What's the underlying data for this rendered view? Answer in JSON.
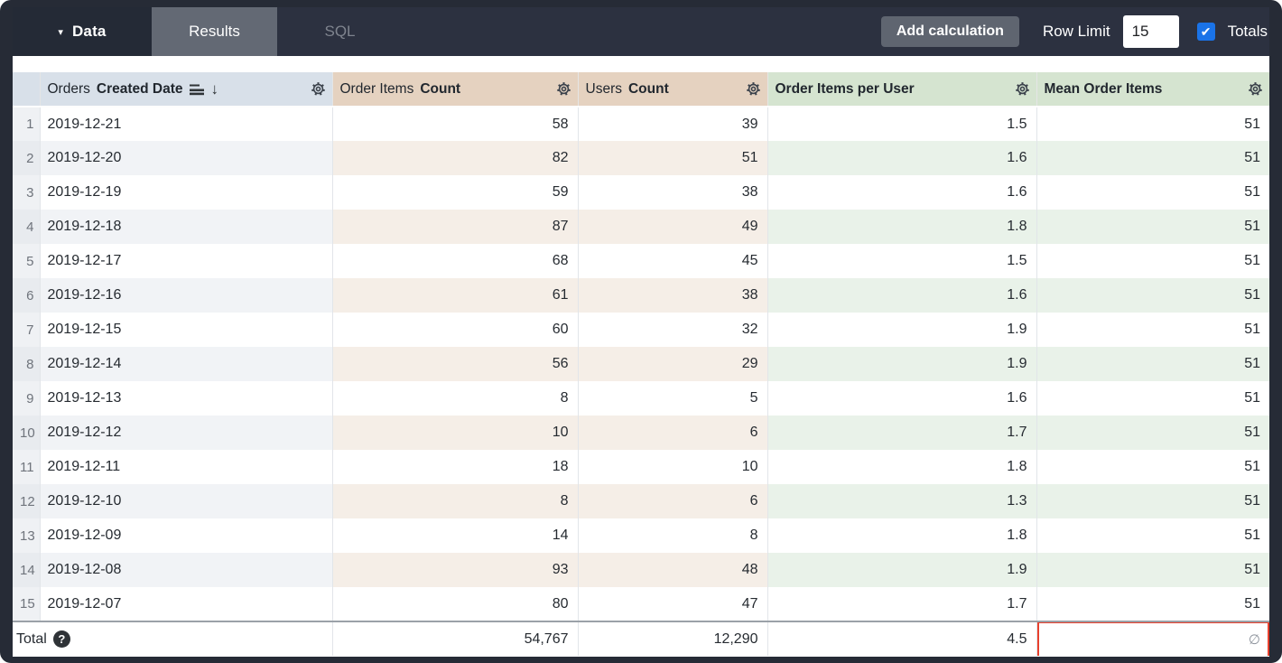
{
  "topbar": {
    "data_label": "Data",
    "tabs": [
      {
        "label": "Results",
        "active": true
      },
      {
        "label": "SQL",
        "active": false
      }
    ],
    "add_calculation_label": "Add calculation",
    "row_limit_label": "Row Limit",
    "row_limit_value": "15",
    "totals_label": "Totals",
    "totals_checked": true
  },
  "icons": {
    "caret_down": "▾",
    "check": "✔",
    "sort_desc_arrow": "↓",
    "help": "?"
  },
  "table": {
    "columns": [
      {
        "group": "Orders",
        "name": "Created Date",
        "type": "dimension",
        "sorted": "desc"
      },
      {
        "group": "Order Items",
        "name": "Count",
        "type": "measure"
      },
      {
        "group": "Users",
        "name": "Count",
        "type": "measure"
      },
      {
        "group": "",
        "name": "Order Items per User",
        "type": "table-calculation"
      },
      {
        "group": "",
        "name": "Mean Order Items",
        "type": "table-calculation"
      }
    ],
    "rows": [
      {
        "n": "1",
        "date": "2019-12-21",
        "order_items_count": "58",
        "users_count": "39",
        "order_items_per_user": "1.5",
        "mean_order_items": "51"
      },
      {
        "n": "2",
        "date": "2019-12-20",
        "order_items_count": "82",
        "users_count": "51",
        "order_items_per_user": "1.6",
        "mean_order_items": "51"
      },
      {
        "n": "3",
        "date": "2019-12-19",
        "order_items_count": "59",
        "users_count": "38",
        "order_items_per_user": "1.6",
        "mean_order_items": "51"
      },
      {
        "n": "4",
        "date": "2019-12-18",
        "order_items_count": "87",
        "users_count": "49",
        "order_items_per_user": "1.8",
        "mean_order_items": "51"
      },
      {
        "n": "5",
        "date": "2019-12-17",
        "order_items_count": "68",
        "users_count": "45",
        "order_items_per_user": "1.5",
        "mean_order_items": "51"
      },
      {
        "n": "6",
        "date": "2019-12-16",
        "order_items_count": "61",
        "users_count": "38",
        "order_items_per_user": "1.6",
        "mean_order_items": "51"
      },
      {
        "n": "7",
        "date": "2019-12-15",
        "order_items_count": "60",
        "users_count": "32",
        "order_items_per_user": "1.9",
        "mean_order_items": "51"
      },
      {
        "n": "8",
        "date": "2019-12-14",
        "order_items_count": "56",
        "users_count": "29",
        "order_items_per_user": "1.9",
        "mean_order_items": "51"
      },
      {
        "n": "9",
        "date": "2019-12-13",
        "order_items_count": "8",
        "users_count": "5",
        "order_items_per_user": "1.6",
        "mean_order_items": "51"
      },
      {
        "n": "10",
        "date": "2019-12-12",
        "order_items_count": "10",
        "users_count": "6",
        "order_items_per_user": "1.7",
        "mean_order_items": "51"
      },
      {
        "n": "11",
        "date": "2019-12-11",
        "order_items_count": "18",
        "users_count": "10",
        "order_items_per_user": "1.8",
        "mean_order_items": "51"
      },
      {
        "n": "12",
        "date": "2019-12-10",
        "order_items_count": "8",
        "users_count": "6",
        "order_items_per_user": "1.3",
        "mean_order_items": "51"
      },
      {
        "n": "13",
        "date": "2019-12-09",
        "order_items_count": "14",
        "users_count": "8",
        "order_items_per_user": "1.8",
        "mean_order_items": "51"
      },
      {
        "n": "14",
        "date": "2019-12-08",
        "order_items_count": "93",
        "users_count": "48",
        "order_items_per_user": "1.9",
        "mean_order_items": "51"
      },
      {
        "n": "15",
        "date": "2019-12-07",
        "order_items_count": "80",
        "users_count": "47",
        "order_items_per_user": "1.7",
        "mean_order_items": "51"
      }
    ],
    "total": {
      "label": "Total",
      "order_items_count": "54,767",
      "users_count": "12,290",
      "order_items_per_user": "4.5",
      "mean_order_items": "∅"
    }
  },
  "annotation": {
    "highlight": "red box around Mean Order Items total cell"
  },
  "colors": {
    "frame_bg": "#262b36",
    "topbar_bg": "#2c3140",
    "data_section_bg": "#242a36",
    "tab_active_bg": "#636974",
    "header_dimension": "#d8e0e9",
    "header_measure": "#e5d2c0",
    "header_calc": "#d5e4d0",
    "checkbox_blue": "#1a73e8",
    "annotation_red": "#e8402d"
  }
}
